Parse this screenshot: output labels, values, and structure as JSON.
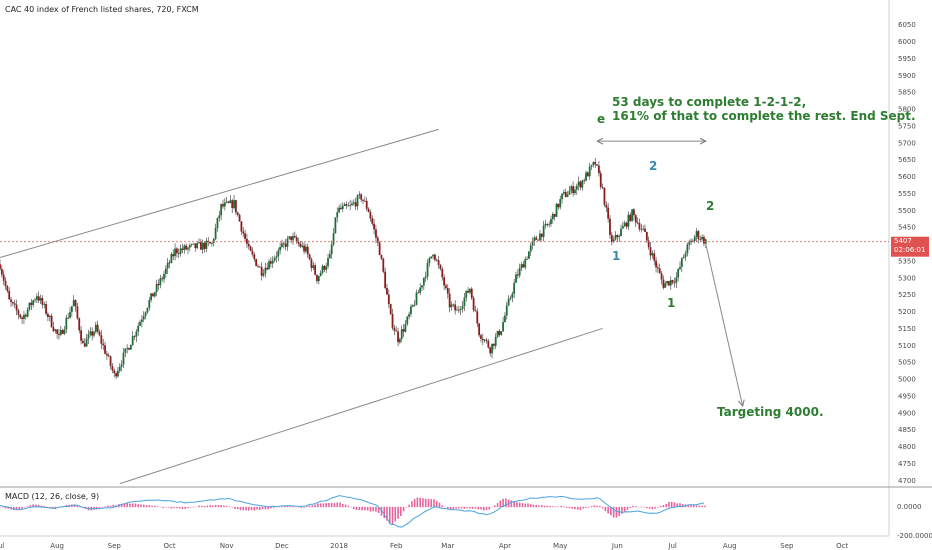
{
  "header": {
    "title": "CAC 40 index of French listed shares, 720, FXCM"
  },
  "price_tag": {
    "value": "5407",
    "countdown": "02:06:01"
  },
  "macd": {
    "label": "MACD (12, 26, close, 9)",
    "zero_label": "0.0000",
    "bottom_label": "-200.0000"
  },
  "annotations": {
    "days_line1": "53 days to complete 1-2-1-2,",
    "days_line2": "161% of that to complete the rest. End Sept.",
    "target": "Targeting 4000.",
    "wave_e": "e",
    "wave_1a": "1",
    "wave_2a": "2",
    "wave_1b": "1",
    "wave_2b": "2"
  },
  "colors": {
    "up": "#1e6e3a",
    "down": "#8b1c1c",
    "channel": "#8a8a8a",
    "price_line": "#e06666",
    "price_tag": "#e05252",
    "macd_line": "#4aa3df",
    "histogram": "#e8629c",
    "ann_green": "#2e7d32",
    "ann_blue": "#3a89b0"
  },
  "chart_data": {
    "type": "candlestick",
    "title": "CAC 40 index of French listed shares, 720, FXCM",
    "y_ticks": [
      4700,
      4750,
      4800,
      4850,
      4900,
      4950,
      5000,
      5050,
      5100,
      5150,
      5200,
      5250,
      5300,
      5350,
      5400,
      5450,
      5500,
      5550,
      5600,
      5650,
      5700,
      5750,
      5800,
      5850,
      5900,
      5950,
      6000,
      6050
    ],
    "ylim": [
      4680,
      6070
    ],
    "x_labels": [
      "Jul",
      "Aug",
      "Sep",
      "Oct",
      "Nov",
      "Dec",
      "2018",
      "Feb",
      "Mar",
      "Apr",
      "May",
      "Jun",
      "Jul",
      "Aug",
      "Sep",
      "Oct"
    ],
    "x_label_days": [
      0,
      31,
      62,
      92,
      123,
      153,
      184,
      215,
      243,
      274,
      304,
      335,
      365,
      396,
      427,
      457
    ],
    "xlim_days": [
      0,
      480
    ],
    "last_price": 5407,
    "price_path": [
      [
        0,
        5340
      ],
      [
        5,
        5230
      ],
      [
        12,
        5180
      ],
      [
        20,
        5250
      ],
      [
        25,
        5200
      ],
      [
        32,
        5120
      ],
      [
        40,
        5230
      ],
      [
        45,
        5100
      ],
      [
        52,
        5150
      ],
      [
        58,
        5070
      ],
      [
        62,
        5010
      ],
      [
        70,
        5100
      ],
      [
        80,
        5220
      ],
      [
        88,
        5300
      ],
      [
        95,
        5380
      ],
      [
        105,
        5390
      ],
      [
        115,
        5400
      ],
      [
        120,
        5510
      ],
      [
        127,
        5520
      ],
      [
        135,
        5380
      ],
      [
        142,
        5320
      ],
      [
        150,
        5370
      ],
      [
        158,
        5420
      ],
      [
        166,
        5380
      ],
      [
        172,
        5300
      ],
      [
        179,
        5360
      ],
      [
        183,
        5500
      ],
      [
        190,
        5510
      ],
      [
        196,
        5540
      ],
      [
        200,
        5500
      ],
      [
        206,
        5380
      ],
      [
        212,
        5180
      ],
      [
        216,
        5120
      ],
      [
        220,
        5160
      ],
      [
        228,
        5270
      ],
      [
        235,
        5380
      ],
      [
        240,
        5300
      ],
      [
        244,
        5220
      ],
      [
        248,
        5200
      ],
      [
        255,
        5270
      ],
      [
        260,
        5140
      ],
      [
        266,
        5090
      ],
      [
        272,
        5150
      ],
      [
        280,
        5300
      ],
      [
        290,
        5410
      ],
      [
        298,
        5460
      ],
      [
        305,
        5540
      ],
      [
        315,
        5580
      ],
      [
        323,
        5640
      ],
      [
        327,
        5560
      ],
      [
        332,
        5400
      ],
      [
        337,
        5440
      ],
      [
        343,
        5490
      ],
      [
        349,
        5440
      ],
      [
        355,
        5350
      ],
      [
        360,
        5280
      ],
      [
        367,
        5300
      ],
      [
        372,
        5380
      ],
      [
        378,
        5430
      ],
      [
        383,
        5407
      ]
    ],
    "macd_range": [
      -200,
      120
    ],
    "macd_line": [
      [
        0,
        10
      ],
      [
        10,
        -20
      ],
      [
        20,
        5
      ],
      [
        30,
        -10
      ],
      [
        40,
        15
      ],
      [
        50,
        -15
      ],
      [
        60,
        -5
      ],
      [
        70,
        30
      ],
      [
        80,
        50
      ],
      [
        90,
        45
      ],
      [
        100,
        30
      ],
      [
        110,
        40
      ],
      [
        120,
        60
      ],
      [
        125,
        55
      ],
      [
        135,
        20
      ],
      [
        145,
        0
      ],
      [
        155,
        10
      ],
      [
        165,
        5
      ],
      [
        175,
        40
      ],
      [
        185,
        80
      ],
      [
        195,
        55
      ],
      [
        205,
        10
      ],
      [
        212,
        -120
      ],
      [
        218,
        -145
      ],
      [
        225,
        -80
      ],
      [
        235,
        0
      ],
      [
        245,
        -20
      ],
      [
        255,
        -30
      ],
      [
        265,
        -60
      ],
      [
        275,
        20
      ],
      [
        285,
        55
      ],
      [
        295,
        70
      ],
      [
        305,
        75
      ],
      [
        315,
        50
      ],
      [
        325,
        65
      ],
      [
        335,
        -40
      ],
      [
        345,
        -30
      ],
      [
        355,
        -50
      ],
      [
        365,
        -5
      ],
      [
        375,
        15
      ],
      [
        383,
        25
      ]
    ],
    "channel_upper": [
      [
        0,
        5360
      ],
      [
        238,
        5740
      ]
    ],
    "channel_lower": [
      [
        65,
        4690
      ],
      [
        327,
        5150
      ]
    ],
    "projection_arrow": [
      [
        383,
        5400
      ],
      [
        403,
        4920
      ]
    ],
    "days_arrow": [
      [
        324,
        5705
      ],
      [
        383,
        5705
      ]
    ],
    "series": [
      {
        "name": "CAC 40",
        "values_ref": "price_path"
      }
    ]
  }
}
